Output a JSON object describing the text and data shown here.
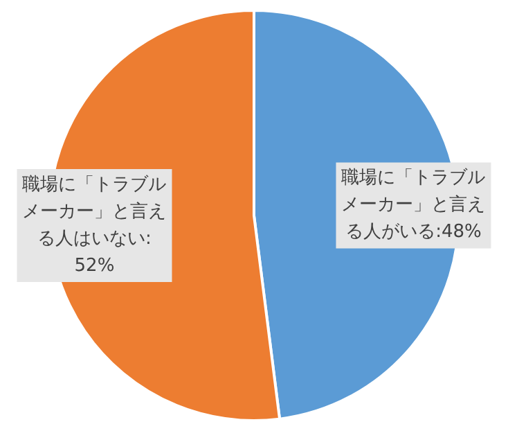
{
  "chart_data": {
    "type": "pie",
    "categories": [
      "職場に「トラブルメーカー」と言える人がいる",
      "職場に「トラブルメーカー」と言える人はいない"
    ],
    "values": [
      48,
      52
    ],
    "colors": [
      "#5b9bd5",
      "#ed7d31"
    ],
    "value_labels": [
      ":48%",
      ":52%"
    ]
  }
}
